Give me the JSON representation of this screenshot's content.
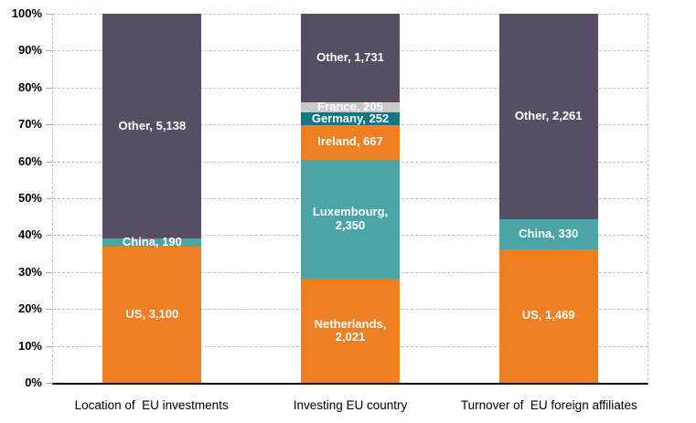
{
  "chart_data": {
    "type": "bar",
    "variant": "100-percent-stacked-column",
    "title": "",
    "xlabel": "",
    "ylabel": "",
    "ylim": [
      0,
      100
    ],
    "grid": "dashed-horizontal",
    "legend": "none (labels inside segments)",
    "categories": [
      "Location of  EU investments",
      "Investing EU country",
      "Turnover of  EU foreign affiliates"
    ],
    "y_axis": {
      "unit": "%",
      "tick_labels_top_to_bottom": [
        "100%",
        "90%",
        "80%",
        "70%",
        "60%",
        "50%",
        "40%",
        "30%",
        "20%",
        "10%",
        "0%"
      ]
    },
    "palette": {
      "orange": "#EE7F22",
      "teal": "#4BA4A7",
      "dark_teal": "#147882",
      "light_gray": "#C9C9C9",
      "purple": "#594D63"
    },
    "styles": {
      "segment_label_color": "#FFFFFF",
      "gridline_color": "#BFBFBF",
      "axis_line_color": "#000000",
      "tick_label_color": "#000000"
    },
    "bars": [
      {
        "category": "Location of  EU investments",
        "segments_bottom_to_top": [
          {
            "name": "US",
            "value": 3100,
            "label": "US, 3,100",
            "color": "orange"
          },
          {
            "name": "China",
            "value": 190,
            "label": "China, 190",
            "color": "teal"
          },
          {
            "name": "Other",
            "value": 5138,
            "label": "Other, 5,138",
            "color": "purple"
          }
        ]
      },
      {
        "category": "Investing EU country",
        "segments_bottom_to_top": [
          {
            "name": "Netherlands",
            "value": 2021,
            "label": "Netherlands, 2,021",
            "color": "orange"
          },
          {
            "name": "Luxembourg",
            "value": 2350,
            "label": "Luxembourg, 2,350",
            "color": "teal"
          },
          {
            "name": "Ireland",
            "value": 667,
            "label": "Ireland, 667",
            "color": "orange"
          },
          {
            "name": "Germany",
            "value": 252,
            "label": "Germany, 252",
            "color": "dark_teal"
          },
          {
            "name": "France",
            "value": 205,
            "label": "France, 205",
            "color": "light_gray"
          },
          {
            "name": "Other",
            "value": 1731,
            "label": "Other, 1,731",
            "color": "purple"
          }
        ]
      },
      {
        "category": "Turnover of  EU foreign affiliates",
        "segments_bottom_to_top": [
          {
            "name": "US",
            "value": 1469,
            "label": "US, 1,469",
            "color": "orange"
          },
          {
            "name": "China",
            "value": 330,
            "label": "China, 330",
            "color": "teal"
          },
          {
            "name": "Other",
            "value": 2261,
            "label": "Other, 2,261",
            "color": "purple"
          }
        ]
      }
    ]
  }
}
